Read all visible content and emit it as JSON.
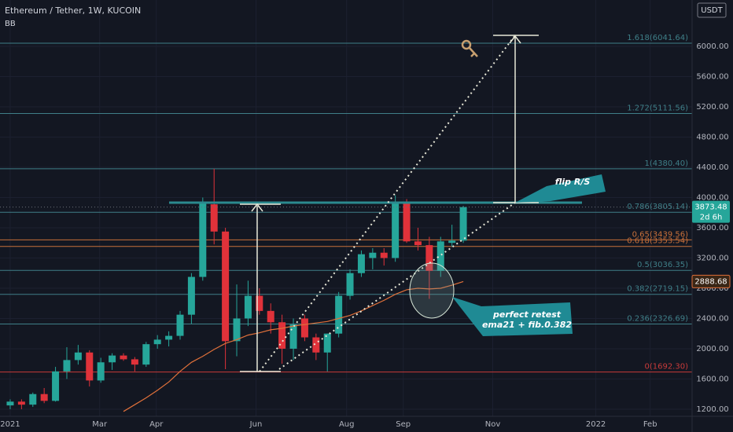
{
  "chart_data": {
    "type": "candlestick",
    "title": "Ethereum / Tether, 1W, KUCOIN",
    "currency": "USDT",
    "ylim": [
      1106,
      6613
    ],
    "xlim": [
      -0.9,
      60.2
    ],
    "yticks": [
      {
        "value": 1200,
        "label": "1200.00"
      },
      {
        "value": 1600,
        "label": "1600.00"
      },
      {
        "value": 2000,
        "label": "2000.00"
      },
      {
        "value": 2400,
        "label": "2400.00"
      },
      {
        "value": 2800,
        "label": "2800.00"
      },
      {
        "value": 3200,
        "label": "3200.00"
      },
      {
        "value": 3600,
        "label": "3600.00"
      },
      {
        "value": 4000,
        "label": "4000.00"
      },
      {
        "value": 4400,
        "label": "4400.00"
      },
      {
        "value": 4800,
        "label": "4800.00"
      },
      {
        "value": 5200,
        "label": "5200.00"
      },
      {
        "value": 5600,
        "label": "5600.00"
      },
      {
        "value": 6000,
        "label": "6000.00"
      }
    ],
    "xticks": [
      {
        "value": 0,
        "label": "2021"
      },
      {
        "value": 7.9,
        "label": "Mar"
      },
      {
        "value": 12.9,
        "label": "Apr"
      },
      {
        "value": 21.7,
        "label": "Jun"
      },
      {
        "value": 29.7,
        "label": "Aug"
      },
      {
        "value": 34.7,
        "label": "Sep"
      },
      {
        "value": 42.6,
        "label": "Nov"
      },
      {
        "value": 51.7,
        "label": "2022"
      },
      {
        "value": 56.5,
        "label": "Feb"
      }
    ],
    "up_color": "#26a69a",
    "down_color": "#e0323a",
    "open": [
      1250,
      1300,
      1260,
      1400,
      1310,
      1700,
      1850,
      1950,
      1580,
      1820,
      1910,
      1860,
      1790,
      2060,
      2120,
      2170,
      2450,
      2950,
      3910,
      3550,
      2100,
      2400,
      2700,
      2500,
      2350,
      2000,
      2400,
      2150,
      1950,
      2200,
      2700,
      3000,
      3200,
      3270,
      3200,
      3940,
      3420,
      3370,
      3030,
      3400,
      3430
    ],
    "high": [
      1330,
      1330,
      1420,
      1480,
      1760,
      2020,
      2050,
      1980,
      1880,
      1940,
      1940,
      1890,
      2090,
      2180,
      2230,
      2500,
      3000,
      4000,
      4380,
      3600,
      2850,
      2900,
      2800,
      2600,
      2450,
      2400,
      2450,
      2200,
      2200,
      2750,
      3050,
      3300,
      3330,
      3330,
      4030,
      3980,
      3600,
      3480,
      3480,
      3640,
      3890
    ],
    "low": [
      1200,
      1200,
      1230,
      1280,
      1300,
      1600,
      1790,
      1500,
      1550,
      1720,
      1840,
      1700,
      1760,
      2000,
      2030,
      2120,
      2330,
      2900,
      3380,
      1730,
      1900,
      2300,
      2450,
      2200,
      1800,
      1850,
      2100,
      1850,
      1700,
      2150,
      2650,
      2950,
      3050,
      3100,
      3150,
      3400,
      3300,
      2660,
      2950,
      3350,
      3400
    ],
    "close": [
      1300,
      1260,
      1400,
      1310,
      1700,
      1850,
      1950,
      1580,
      1820,
      1910,
      1860,
      1790,
      2060,
      2120,
      2170,
      2450,
      2950,
      3940,
      3550,
      2100,
      2400,
      2700,
      2500,
      2350,
      2000,
      2320,
      2150,
      1950,
      2200,
      2700,
      3000,
      3250,
      3270,
      3200,
      3940,
      3420,
      3370,
      3030,
      3420,
      3430,
      3873.48
    ],
    "countdown": "2d 6h",
    "indicator": {
      "name": "BB",
      "color": "#e0703a",
      "values": [
        null,
        null,
        null,
        null,
        null,
        null,
        null,
        null,
        null,
        null,
        1170,
        1260,
        1350,
        1450,
        1560,
        1700,
        1820,
        1900,
        1990,
        2070,
        2120,
        2180,
        2210,
        2250,
        2270,
        2300,
        2320,
        2340,
        2360,
        2400,
        2440,
        2500,
        2570,
        2640,
        2720,
        2780,
        2800,
        2790,
        2800,
        2840,
        2888.68
      ]
    },
    "fib_levels": [
      {
        "label": "1.618(6041.64)",
        "value": 6041.64,
        "color": "#3f7f88"
      },
      {
        "label": "1.272(5111.56)",
        "value": 5111.56,
        "color": "#3f7f88"
      },
      {
        "label": "1(4380.40)",
        "value": 4380.4,
        "color": "#3f7f88"
      },
      {
        "label": "0.786(3805.14)",
        "value": 3805.14,
        "color": "#3f7f88"
      },
      {
        "label": "0.65(3439.56)",
        "value": 3439.56,
        "color": "#c8703a"
      },
      {
        "label": "0.618(3353.54)",
        "value": 3353.54,
        "color": "#c8703a"
      },
      {
        "label": "0.5(3036.35)",
        "value": 3036.35,
        "color": "#3f7f88"
      },
      {
        "label": "0.382(2719.15)",
        "value": 2719.15,
        "color": "#3f7f88"
      },
      {
        "label": "0.236(2326.69)",
        "value": 2326.69,
        "color": "#3f7f88"
      },
      {
        "label": "0(1692.30)",
        "value": 1692.3,
        "color": "#c83a3a"
      }
    ],
    "annotations": {
      "flip": "flip R/S",
      "retest": [
        "perfect retest",
        "ema21 + fib.0.382"
      ]
    }
  }
}
